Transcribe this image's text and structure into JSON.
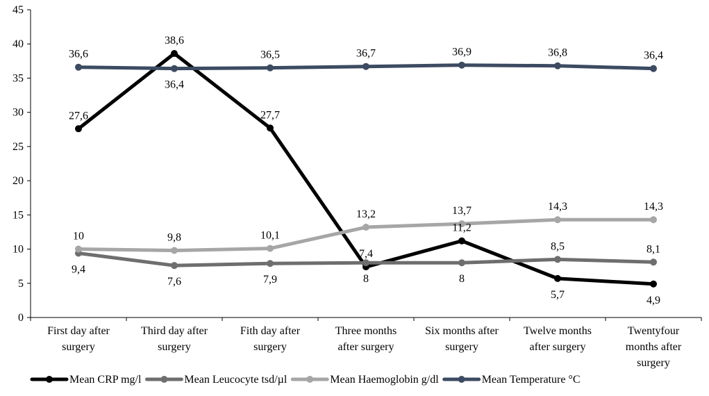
{
  "chart_data": {
    "type": "line",
    "title": "",
    "xlabel": "",
    "ylabel": "",
    "ylim": [
      0,
      45
    ],
    "yticks": [
      0,
      5,
      10,
      15,
      20,
      25,
      30,
      35,
      40,
      45
    ],
    "ytick_labels": [
      "0",
      "5",
      "10",
      "15",
      "20",
      "25",
      "30",
      "35",
      "40",
      "45"
    ],
    "grid": false,
    "legend_position": "bottom",
    "categories": [
      [
        "First day after",
        "surgery"
      ],
      [
        "Third day after",
        "surgery"
      ],
      [
        "Fith day after",
        "surgery"
      ],
      [
        "Three months",
        "after surgery"
      ],
      [
        "Six months after",
        "surgery"
      ],
      [
        "Twelve months",
        "after surgery"
      ],
      [
        "Twentyfour",
        "months after",
        "surgery"
      ]
    ],
    "series": [
      {
        "name": "Mean CRP mg/l",
        "color": "#000000",
        "values": [
          27.6,
          38.6,
          27.7,
          7.4,
          11.2,
          5.7,
          4.9
        ],
        "labels": [
          "27,6",
          "38,6",
          "27,7",
          "7,4",
          "11,2",
          "5,7",
          "4,9"
        ],
        "label_pos": [
          "above",
          "above",
          "above",
          "above",
          "above",
          "below",
          "below"
        ]
      },
      {
        "name": "Mean Leucocyte tsd/µl",
        "color": "#6e6e6e",
        "values": [
          9.4,
          7.6,
          7.9,
          8,
          8,
          8.5,
          8.1
        ],
        "labels": [
          "9,4",
          "7,6",
          "7,9",
          "8",
          "8",
          "8,5",
          "8,1"
        ],
        "label_pos": [
          "below",
          "below",
          "below",
          "below",
          "below",
          "above",
          "above"
        ]
      },
      {
        "name": "Mean Haemoglobin g/dl",
        "color": "#a6a6a6",
        "values": [
          10,
          9.8,
          10.1,
          13.2,
          13.7,
          14.3,
          14.3
        ],
        "labels": [
          "10",
          "9,8",
          "10,1",
          "13,2",
          "13,7",
          "14,3",
          "14,3"
        ],
        "label_pos": [
          "above",
          "above",
          "above",
          "above",
          "above",
          "above",
          "above"
        ]
      },
      {
        "name": "Mean Temperature °C",
        "color": "#3c4b61",
        "values": [
          36.6,
          36.4,
          36.5,
          36.7,
          36.9,
          36.8,
          36.4
        ],
        "labels": [
          "36,6",
          "36,4",
          "36,5",
          "36,7",
          "36,9",
          "36,8",
          "36,4"
        ],
        "label_pos": [
          "above",
          "below",
          "above",
          "above",
          "above",
          "above",
          "above"
        ]
      }
    ]
  }
}
